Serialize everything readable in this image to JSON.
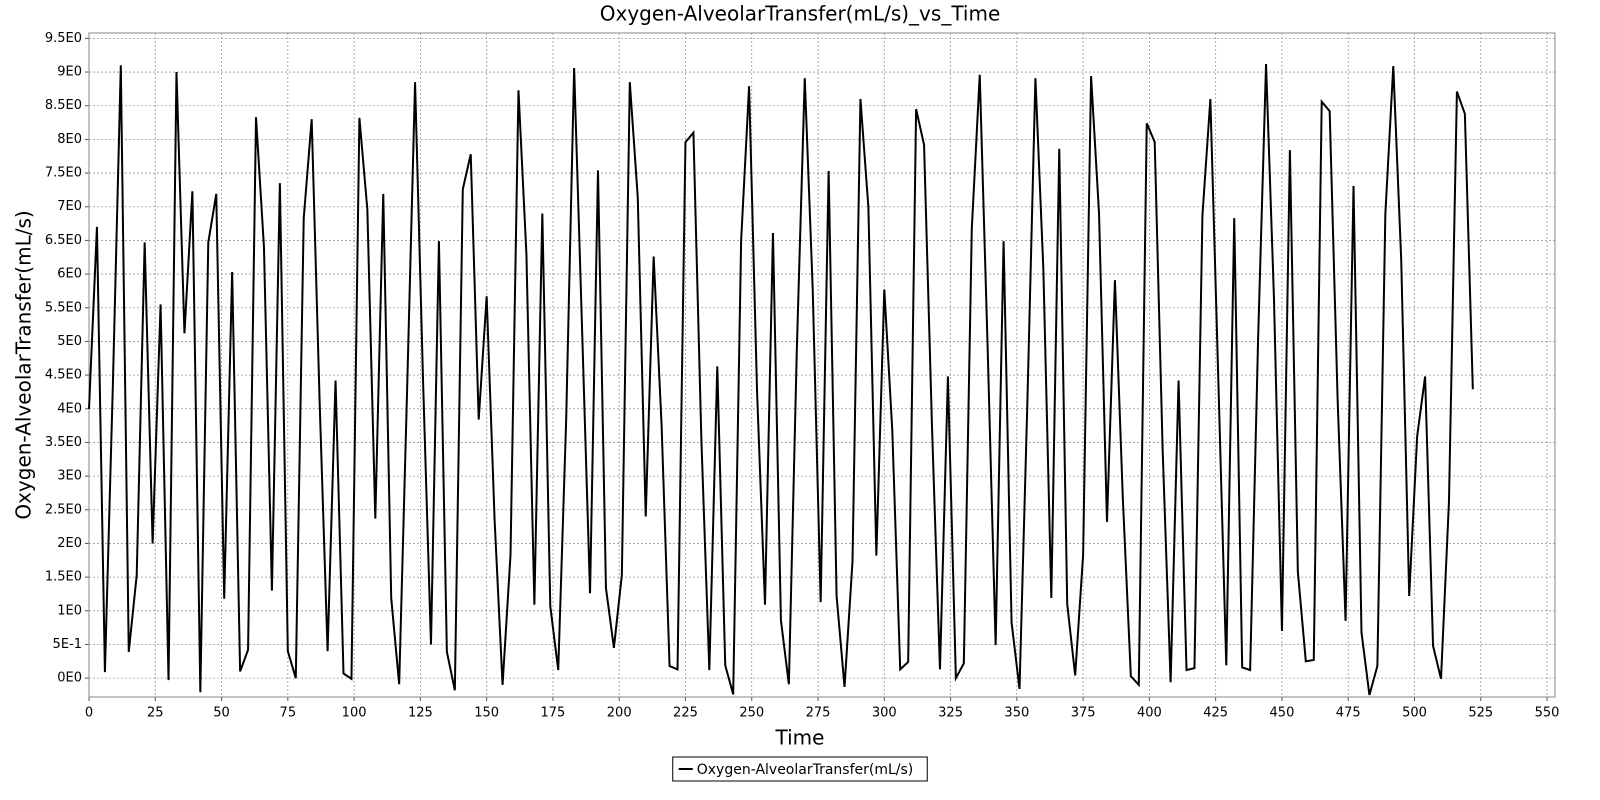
{
  "chart_data": {
    "type": "line",
    "title": "Oxygen-AlveolarTransfer(mL/s)_vs_Time",
    "xlabel": "Time",
    "ylabel": "Oxygen-AlveolarTransfer(mL/s)",
    "legend_position": "bottom",
    "grid": true,
    "xlim": [
      0,
      553
    ],
    "ylim": [
      -0.28,
      9.58
    ],
    "xticks": [
      0,
      25,
      50,
      75,
      100,
      125,
      150,
      175,
      200,
      225,
      250,
      275,
      300,
      325,
      350,
      375,
      400,
      425,
      450,
      475,
      500,
      525,
      550
    ],
    "yticks": [
      {
        "value": 0,
        "label": "0E0"
      },
      {
        "value": 0.5,
        "label": "5E-1"
      },
      {
        "value": 1,
        "label": "1E0"
      },
      {
        "value": 1.5,
        "label": "1.5E0"
      },
      {
        "value": 2,
        "label": "2E0"
      },
      {
        "value": 2.5,
        "label": "2.5E0"
      },
      {
        "value": 3,
        "label": "3E0"
      },
      {
        "value": 3.5,
        "label": "3.5E0"
      },
      {
        "value": 4,
        "label": "4E0"
      },
      {
        "value": 4.5,
        "label": "4.5E0"
      },
      {
        "value": 5,
        "label": "5E0"
      },
      {
        "value": 5.5,
        "label": "5.5E0"
      },
      {
        "value": 6,
        "label": "6E0"
      },
      {
        "value": 6.5,
        "label": "6.5E0"
      },
      {
        "value": 7,
        "label": "7E0"
      },
      {
        "value": 7.5,
        "label": "7.5E0"
      },
      {
        "value": 8,
        "label": "8E0"
      },
      {
        "value": 8.5,
        "label": "8.5E0"
      },
      {
        "value": 9,
        "label": "9E0"
      },
      {
        "value": 9.5,
        "label": "9.5E0"
      }
    ],
    "x": [
      0,
      3,
      6,
      9,
      12,
      15,
      18,
      21,
      24,
      27,
      30,
      33,
      36,
      39,
      42,
      45,
      48,
      51,
      54,
      57,
      60,
      63,
      66,
      69,
      72,
      75,
      78,
      81,
      84,
      87,
      90,
      93,
      96,
      99,
      102,
      105,
      108,
      111,
      114,
      117,
      120,
      123,
      126,
      129,
      132,
      135,
      138,
      141,
      144,
      147,
      150,
      153,
      156,
      159,
      162,
      165,
      168,
      171,
      174,
      177,
      180,
      183,
      186,
      189,
      192,
      195,
      198,
      201,
      204,
      207,
      210,
      213,
      216,
      219,
      222,
      225,
      228,
      231,
      234,
      237,
      240,
      243,
      246,
      249,
      252,
      255,
      258,
      261,
      264,
      267,
      270,
      273,
      276,
      279,
      282,
      285,
      288,
      291,
      294,
      297,
      300,
      303,
      306,
      309,
      312,
      315,
      318,
      321,
      324,
      327,
      330,
      333,
      336,
      339,
      342,
      345,
      348,
      351,
      354,
      357,
      360,
      363,
      366,
      369,
      372,
      375,
      378,
      381,
      384,
      387,
      390,
      393,
      396,
      399,
      402,
      405,
      408,
      411,
      414,
      417,
      420,
      423,
      426,
      429,
      432,
      435,
      438,
      441,
      444,
      447,
      450,
      453,
      456,
      459,
      462,
      465,
      468,
      471,
      474,
      477,
      480,
      483,
      486,
      489,
      492,
      495,
      498,
      501,
      504,
      507,
      510,
      513,
      516,
      519,
      522
    ],
    "series": [
      {
        "name": "Oxygen-AlveolarTransfer(mL/s)",
        "color": "#000000",
        "values": [
          4.0,
          6.7,
          0.09,
          4.35,
          9.1,
          0.39,
          1.53,
          6.47,
          2.0,
          5.55,
          -0.03,
          9.0,
          5.12,
          7.23,
          -0.21,
          6.47,
          7.19,
          1.18,
          6.03,
          0.1,
          0.42,
          8.33,
          6.4,
          1.3,
          7.35,
          0.4,
          0.0,
          6.83,
          8.3,
          4.1,
          0.4,
          4.42,
          0.07,
          -0.01,
          8.32,
          6.96,
          2.37,
          7.19,
          1.19,
          -0.09,
          4.29,
          8.85,
          4.43,
          0.5,
          6.49,
          0.39,
          -0.18,
          7.26,
          7.78,
          3.84,
          5.67,
          2.35,
          -0.1,
          1.83,
          8.73,
          6.3,
          1.09,
          6.9,
          1.07,
          0.12,
          3.84,
          9.06,
          5.18,
          1.26,
          7.54,
          1.34,
          0.45,
          1.53,
          8.85,
          7.14,
          2.4,
          6.26,
          3.75,
          0.18,
          0.13,
          7.96,
          8.1,
          3.54,
          0.12,
          4.63,
          0.19,
          -0.24,
          6.5,
          8.79,
          4.26,
          1.09,
          6.61,
          0.86,
          -0.09,
          4.88,
          8.91,
          5.77,
          1.13,
          7.53,
          1.22,
          -0.13,
          1.73,
          8.6,
          6.99,
          1.82,
          5.77,
          3.69,
          0.13,
          0.24,
          8.45,
          7.92,
          3.72,
          0.13,
          4.48,
          0,
          0.22,
          6.67,
          8.96,
          4.88,
          0.49,
          6.49,
          0.83,
          -0.16,
          4.14,
          8.91,
          6.07,
          1.19,
          7.86,
          1.1,
          0.04,
          1.83,
          8.94,
          6.9,
          2.32,
          5.91,
          2.65,
          0.03,
          -0.1,
          8.24,
          7.96,
          3.39,
          -0.06,
          4.42,
          0.12,
          0.15,
          6.87,
          8.6,
          4.43,
          0.19,
          6.83,
          0.16,
          0.12,
          5.03,
          9.12,
          5.63,
          0.7,
          7.84,
          1.58,
          0.25,
          0.27,
          8.56,
          8.42,
          4.14,
          0.85,
          7.31,
          0.68,
          -0.25,
          0.18,
          6.89,
          9.09,
          6.2,
          1.22,
          3.59,
          4.48,
          0.48,
          -0.01,
          2.62,
          8.71,
          8.38,
          4.29
        ]
      }
    ]
  }
}
